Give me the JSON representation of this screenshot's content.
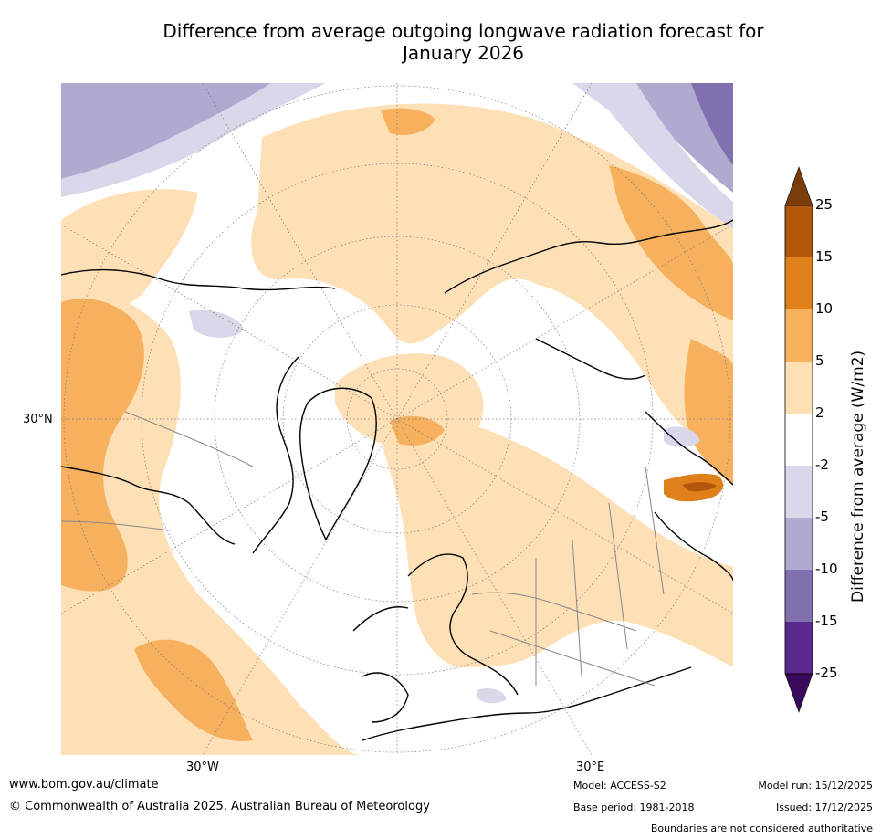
{
  "title": {
    "line1": "Difference from average outgoing longwave radiation forecast for",
    "line2": "January 2026"
  },
  "map": {
    "projection": "north polar stereographic",
    "axis_labels": {
      "lat_left": "30°N",
      "lon_left": "30°W",
      "lon_right": "30°E"
    }
  },
  "colorbar": {
    "label": "Difference from average (W/m2)",
    "ticks": [
      "25",
      "15",
      "10",
      "5",
      "2",
      "-2",
      "-5",
      "-10",
      "-15",
      "-25"
    ],
    "colors": {
      "gt25": "#7a3d0a",
      "b15_25": "#b3570d",
      "b10_15": "#e0801a",
      "b5_10": "#f7b15e",
      "b2_5": "#fde0b6",
      "neutral": "#ffffff",
      "m2_5": "#d8d8ea",
      "m5_10": "#b0a9d0",
      "m10_15": "#8070b0",
      "m15_25": "#5a2a8c",
      "lt25": "#3a0a5a"
    }
  },
  "footer": {
    "website": "www.bom.gov.au/climate",
    "copyright": "© Commonwealth of Australia 2025, Australian Bureau of Meteorology",
    "model": "Model: ACCESS-S2",
    "base_period": "Base period: 1981-2018",
    "model_run": "Model run: 15/12/2025",
    "issued": "Issued: 17/12/2025",
    "disclaimer": "Boundaries are not considered authoritative"
  }
}
